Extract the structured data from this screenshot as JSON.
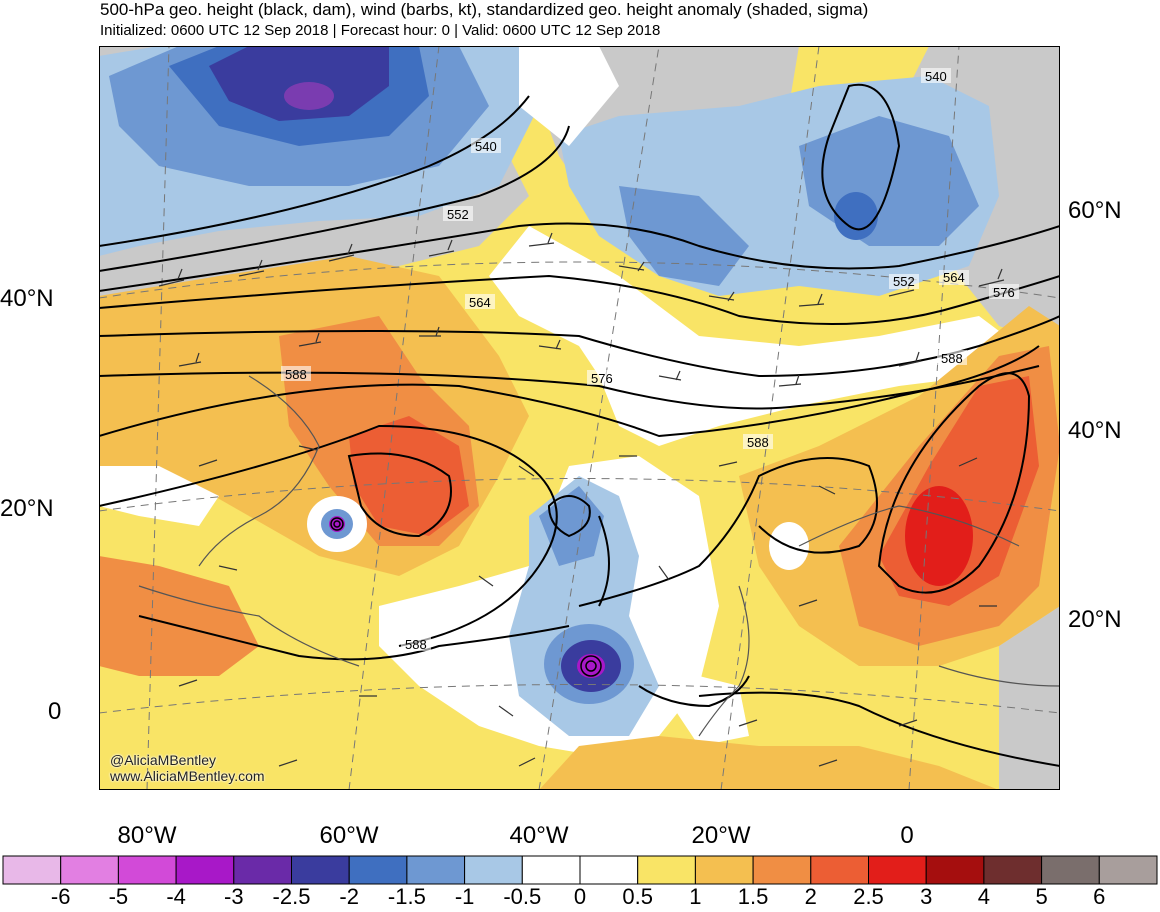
{
  "title": "500-hPa geo. height (black, dam), wind (barbs, kt), standardized geo. height anomaly (shaded, sigma)",
  "subtitle": "Initialized: 0600 UTC 12 Sep 2018 | Forecast hour: 0 | Valid: 0600 UTC 12 Sep 2018",
  "left_lat_labels": [
    "40°N",
    "20°N",
    "0"
  ],
  "right_lat_labels": [
    "60°N",
    "40°N",
    "20°N"
  ],
  "lon_labels": [
    "80°W",
    "60°W",
    "40°W",
    "20°W",
    "0"
  ],
  "contour_labels": [
    "540",
    "540",
    "552",
    "552",
    "564",
    "564",
    "576",
    "576",
    "588",
    "588",
    "588",
    "588"
  ],
  "credit": [
    "@AliciaMBentley",
    "www.AliciaMBentley.com"
  ],
  "colorbar": {
    "labels": [
      "-6",
      "-5",
      "-4",
      "-3",
      "-2.5",
      "-2",
      "-1.5",
      "-1",
      "-0.5",
      "0",
      "0.5",
      "1",
      "1.5",
      "2",
      "2.5",
      "3",
      "4",
      "5",
      "6"
    ],
    "colors": [
      "#e8b8e8",
      "#e27fe2",
      "#d24ad8",
      "#a818c8",
      "#6a2aa8",
      "#3a3c9e",
      "#3f6fc0",
      "#6e98d2",
      "#a8c8e6",
      "#ffffff",
      "#ffffff",
      "#f9e466",
      "#f4bf50",
      "#f08e44",
      "#ec5e34",
      "#e21e1a",
      "#a50e0e",
      "#6e2e2e",
      "#7a6e6c",
      "#a89e9c"
    ]
  }
}
